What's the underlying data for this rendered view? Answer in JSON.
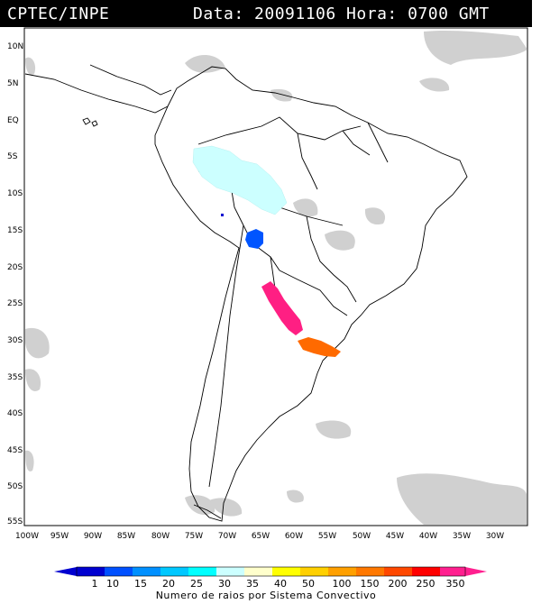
{
  "header": {
    "source": "CPTEC/INPE",
    "datetime": "Data: 20091106 Hora: 0700 GMT"
  },
  "map": {
    "lat_labels": [
      "10N",
      "5N",
      "EQ",
      "5S",
      "10S",
      "15S",
      "20S",
      "25S",
      "30S",
      "35S",
      "40S",
      "45S",
      "50S",
      "55S"
    ],
    "lon_labels": [
      "100W",
      "95W",
      "90W",
      "85W",
      "80W",
      "75W",
      "70W",
      "65W",
      "60W",
      "55W",
      "50W",
      "45W",
      "40W",
      "35W",
      "30W"
    ],
    "convective_systems": [
      {
        "name": "amazon-system",
        "color": "#ccffff",
        "lat": -8.5,
        "lon": -70.5
      },
      {
        "name": "bolivia-system",
        "color": "#0055ff",
        "lat": -16,
        "lon": -65
      },
      {
        "name": "argentina-system",
        "color": "#ff1f83",
        "lat": -26,
        "lon": -62
      },
      {
        "name": "uruguay-system",
        "color": "#ff6a00",
        "lat": -31,
        "lon": -56.5
      }
    ]
  },
  "colorbar": {
    "ticks": [
      "1",
      "10",
      "15",
      "20",
      "25",
      "30",
      "35",
      "40",
      "50",
      "100",
      "150",
      "200",
      "250",
      "350"
    ],
    "colors": [
      "#0000d0",
      "#0050ff",
      "#0090ff",
      "#00c8ff",
      "#00ffff",
      "#ccffff",
      "#ffffcc",
      "#ffff00",
      "#ffd000",
      "#ffa000",
      "#ff7800",
      "#ff4800",
      "#ff0000",
      "#ff1f8f"
    ],
    "title": "Numero de raios por Sistema Convectivo"
  }
}
